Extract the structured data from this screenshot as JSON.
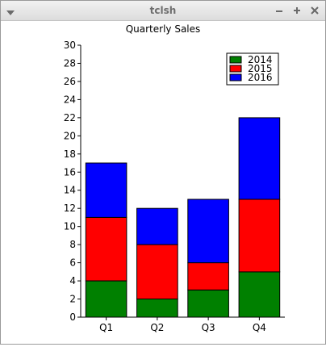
{
  "window": {
    "title": "tclsh"
  },
  "chart_data": {
    "type": "bar",
    "stacked": true,
    "title": "Quarterly Sales",
    "xlabel": "",
    "ylabel": "",
    "categories": [
      "Q1",
      "Q2",
      "Q3",
      "Q4"
    ],
    "ylim": [
      0,
      30
    ],
    "yticks": [
      0,
      2,
      4,
      6,
      8,
      10,
      12,
      14,
      16,
      18,
      20,
      22,
      24,
      26,
      28,
      30
    ],
    "legend_position": "top-right",
    "series": [
      {
        "name": "2014",
        "color": "#008000",
        "values": [
          4,
          2,
          3,
          5
        ]
      },
      {
        "name": "2015",
        "color": "#ff0000",
        "values": [
          7,
          6,
          3,
          8
        ]
      },
      {
        "name": "2016",
        "color": "#0000ff",
        "values": [
          6,
          4,
          7,
          9
        ]
      }
    ]
  }
}
